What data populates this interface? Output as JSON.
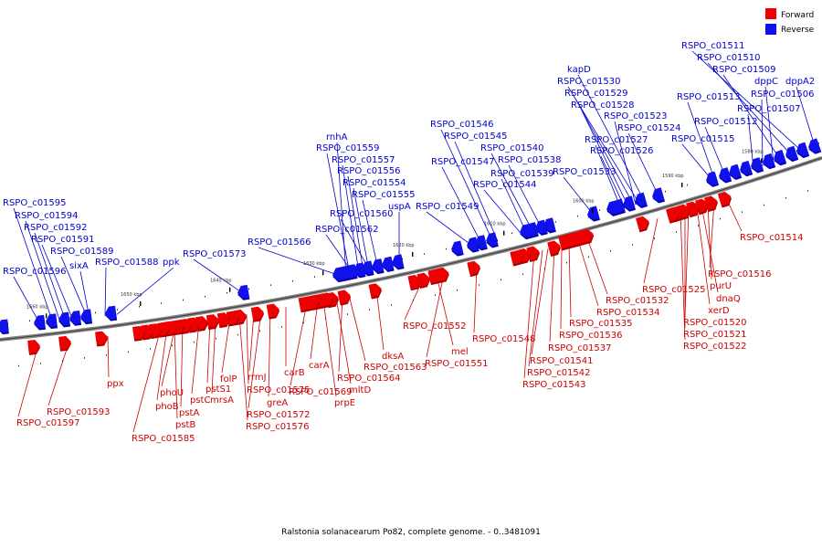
{
  "caption": "Ralstonia solanacearum Po82, complete genome. - 0..3481091",
  "legend": {
    "forward": "Forward",
    "reverse": "Reverse"
  },
  "colors": {
    "forward": "#ee0000",
    "reverse": "#1111ee",
    "leader_forward": "#cc0000",
    "leader_reverse": "#0000cc",
    "backbone": "#777777"
  },
  "ticks": [
    "1580 kbp",
    "1590 kbp",
    "1600 kbp",
    "1610 kbp",
    "1620 kbp",
    "1630 kbp",
    "1640 kbp",
    "1650 kbp",
    "1660 kbp"
  ],
  "reverse_genes": [
    "RSPO_c01511",
    "RSPO_c01510",
    "RSPO_c01509",
    "dppC",
    "dppA2",
    "RSPO_c01506",
    "RSPO_c01507",
    "RSPO_c01513",
    "RSPO_c01512",
    "RSPO_c01515",
    "kapD",
    "RSPO_c01530",
    "RSPO_c01529",
    "RSPO_c01528",
    "RSPO_c01523",
    "RSPO_c01524",
    "RSPO_c01527",
    "RSPO_c01526",
    "RSPO_c01533",
    "RSPO_c01546",
    "RSPO_c01545",
    "RSPO_c01540",
    "RSPO_c01547",
    "RSPO_c01538",
    "RSPO_c01539",
    "RSPO_c01544",
    "RSPO_c01549",
    "rnhA",
    "RSPO_c01559",
    "RSPO_c01557",
    "RSPO_c01556",
    "RSPO_c01554",
    "RSPO_c01555",
    "uspA",
    "RSPO_c01560",
    "RSPO_c01562",
    "RSPO_c01566",
    "RSPO_c01573",
    "ppk",
    "RSPO_c01588",
    "RSPO_c01595",
    "RSPO_c01594",
    "RSPO_c01592",
    "RSPO_c01591",
    "RSPO_c01589",
    "sixA",
    "RSPO_c01596"
  ],
  "forward_genes": [
    "RSPO_c01514",
    "RSPO_c01516",
    "purU",
    "dnaQ",
    "xerD",
    "RSPO_c01520",
    "RSPO_c01521",
    "RSPO_c01522",
    "RSPO_c01525",
    "RSPO_c01532",
    "RSPO_c01534",
    "RSPO_c01535",
    "RSPO_c01536",
    "RSPO_c01537",
    "RSPO_c01541",
    "RSPO_c01542",
    "RSPO_c01543",
    "RSPO_c01548",
    "RSPO_c01552",
    "mel",
    "RSPO_c01551",
    "dksA",
    "RSPO_c01563",
    "RSPO_c01564",
    "mltD",
    "prpE",
    "carA",
    "RSPO_c01569",
    "carB",
    "greA",
    "RSPO_c01572",
    "rrmJ",
    "RSPO_c01575",
    "RSPO_c01576",
    "folP",
    "mrsA",
    "pstS1",
    "pstC",
    "phoU",
    "phoB",
    "pstA",
    "pstB",
    "RSPO_c01585",
    "ppx",
    "RSPO_c01593",
    "RSPO_c01597"
  ]
}
